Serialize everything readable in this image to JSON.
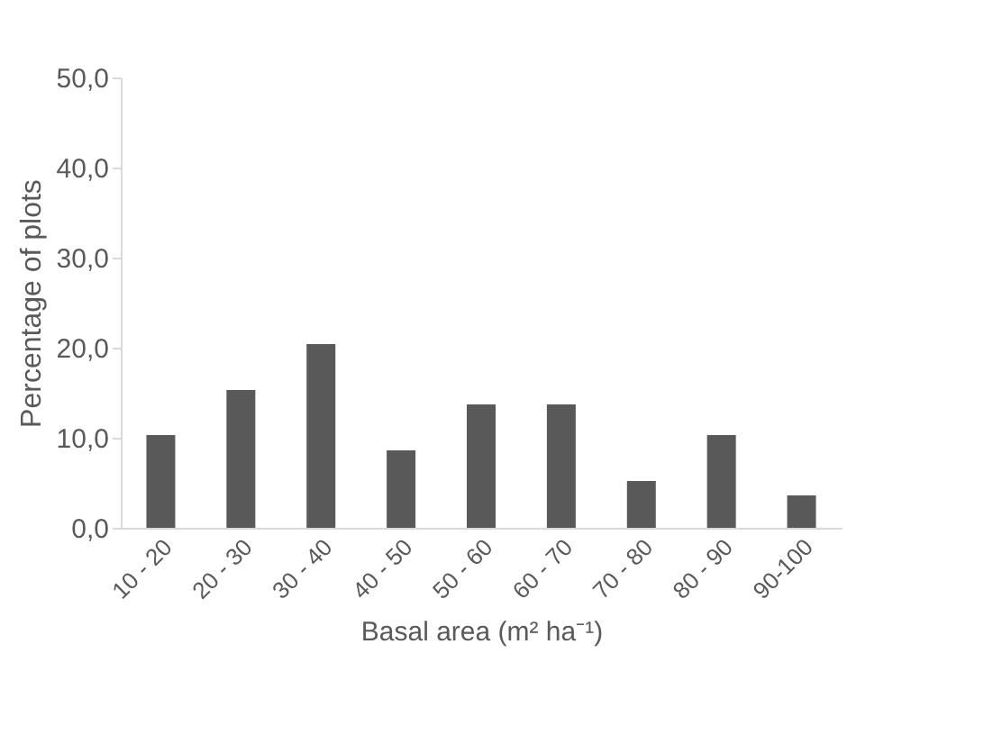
{
  "chart_data": {
    "type": "bar",
    "xlabel": "Basal area (m² ha⁻¹)",
    "ylabel": "Percentage of plots",
    "categories": [
      "10 - 20",
      "20 - 30",
      "30 - 40",
      "40 - 50",
      "50 - 60",
      "60 - 70",
      "70 - 80",
      "80 - 90",
      "90-100"
    ],
    "values": [
      10.3,
      15.3,
      20.4,
      8.6,
      13.7,
      13.7,
      5.2,
      10.3,
      3.6
    ],
    "color": "#595959",
    "ylim": [
      0,
      50
    ],
    "yticks": [
      {
        "value": 0,
        "label": "0,0"
      },
      {
        "value": 10,
        "label": "10,0"
      },
      {
        "value": 20,
        "label": "20,0"
      },
      {
        "value": 30,
        "label": "30,0"
      },
      {
        "value": 40,
        "label": "40,0"
      },
      {
        "value": 50,
        "label": "50,0"
      }
    ],
    "grid": false
  }
}
